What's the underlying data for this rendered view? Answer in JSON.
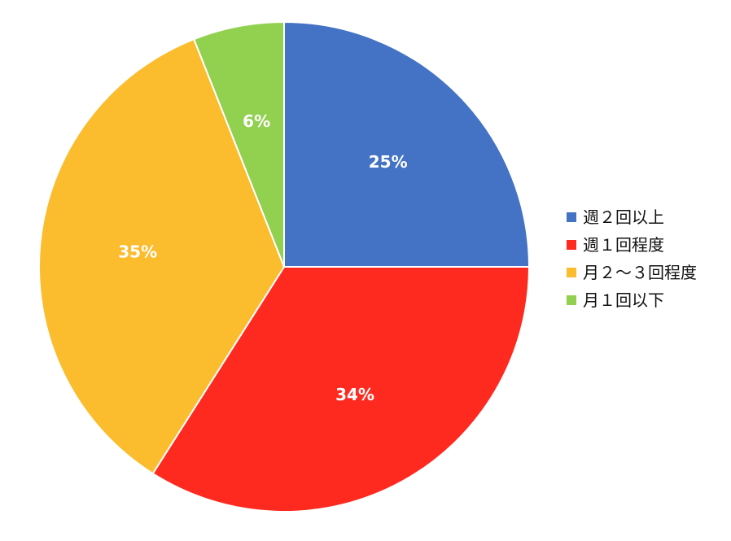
{
  "chart_data": {
    "type": "pie",
    "title": "",
    "categories": [
      "週２回以上",
      "週１回程度",
      "月２〜３回程度",
      "月１回以下"
    ],
    "values": [
      25,
      34,
      35,
      6
    ],
    "value_labels": [
      "25%",
      "34%",
      "35%",
      "6%"
    ],
    "colors": [
      "#4472C4",
      "#FF2A1F",
      "#FBBC2D",
      "#92D050"
    ],
    "start_angle_degrees": 0,
    "direction": "clockwise",
    "legend_position": "right"
  }
}
